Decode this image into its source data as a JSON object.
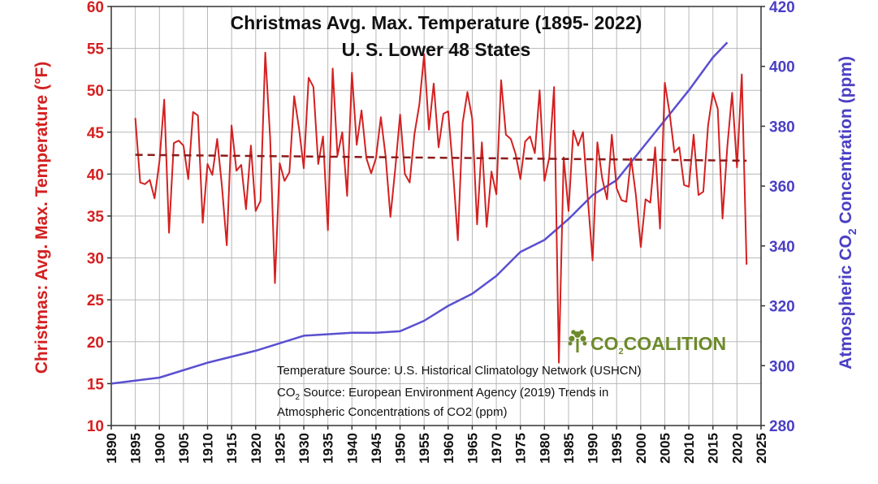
{
  "chart_data": {
    "type": "line",
    "title": "Christmas Avg. Max. Temperature (1895- 2022)",
    "subtitle": "U. S. Lower 48 States",
    "ylabel_left": "Christmas: Avg. Max. Temperature (°F)",
    "ylabel_right": "Atmospheric CO2 Concentration (ppm)",
    "ylim_left": [
      10,
      60
    ],
    "ylim_right": [
      280,
      420
    ],
    "xlim": [
      1890,
      2025
    ],
    "x_ticks": [
      "1890",
      "1895",
      "1900",
      "1905",
      "1910",
      "1915",
      "1920",
      "1925",
      "1930",
      "1935",
      "1940",
      "1945",
      "1950",
      "1955",
      "1960",
      "1965",
      "1970",
      "1975",
      "1980",
      "1985",
      "1990",
      "1995",
      "2000",
      "2005",
      "2010",
      "2015",
      "2020",
      "2025"
    ],
    "y_ticks_left": [
      "10",
      "15",
      "20",
      "25",
      "30",
      "35",
      "40",
      "45",
      "50",
      "55",
      "60"
    ],
    "y_ticks_right": [
      "280",
      "300",
      "320",
      "340",
      "360",
      "380",
      "400",
      "420"
    ],
    "grid": true,
    "colors": {
      "temperature": "#d42020",
      "trend": "#8b1a1a",
      "co2": "#5a4fd0",
      "grid": "#b8b8b8"
    },
    "series": [
      {
        "key": "temperature",
        "x": [
          1895,
          1896,
          1897,
          1898,
          1899,
          1900,
          1901,
          1902,
          1903,
          1904,
          1905,
          1906,
          1907,
          1908,
          1909,
          1910,
          1911,
          1912,
          1913,
          1914,
          1915,
          1916,
          1917,
          1918,
          1919,
          1920,
          1921,
          1922,
          1923,
          1924,
          1925,
          1926,
          1927,
          1928,
          1929,
          1930,
          1931,
          1932,
          1933,
          1934,
          1935,
          1936,
          1937,
          1938,
          1939,
          1940,
          1941,
          1942,
          1943,
          1944,
          1945,
          1946,
          1947,
          1948,
          1949,
          1950,
          1951,
          1952,
          1953,
          1954,
          1955,
          1956,
          1957,
          1958,
          1959,
          1960,
          1961,
          1962,
          1963,
          1964,
          1965,
          1966,
          1967,
          1968,
          1969,
          1970,
          1971,
          1972,
          1973,
          1974,
          1975,
          1976,
          1977,
          1978,
          1979,
          1980,
          1981,
          1982,
          1983,
          1984,
          1985,
          1986,
          1987,
          1988,
          1989,
          1990,
          1991,
          1992,
          1993,
          1994,
          1995,
          1996,
          1997,
          1998,
          1999,
          2000,
          2001,
          2002,
          2003,
          2004,
          2005,
          2006,
          2007,
          2008,
          2009,
          2010,
          2011,
          2012,
          2013,
          2014,
          2015,
          2016,
          2017,
          2018,
          2019,
          2020,
          2021,
          2022
        ],
        "values": [
          46.7,
          39,
          38.8,
          39.3,
          37.1,
          41.5,
          48.9,
          33,
          43.7,
          44,
          43.4,
          39.4,
          47.4,
          47,
          34.2,
          41.2,
          39.9,
          44.2,
          38.5,
          31.5,
          45.8,
          40.4,
          41.1,
          35.8,
          43.4,
          35.6,
          36.8,
          54.5,
          44.3,
          27,
          41.3,
          39.2,
          40.2,
          49.3,
          45.5,
          40.7,
          51.5,
          50.4,
          41.2,
          44.5,
          33.3,
          52.6,
          42.2,
          45,
          37.4,
          52.1,
          43.5,
          47.6,
          41.9,
          40.1,
          41.9,
          46.8,
          42.1,
          34.9,
          40.6,
          47.1,
          40,
          39,
          44.8,
          48.3,
          54.3,
          45.3,
          50.8,
          43.2,
          47.2,
          47.5,
          40.5,
          32.1,
          46.1,
          49.8,
          46.6,
          34,
          43.8,
          33.7,
          40.3,
          37.6,
          51.2,
          44.7,
          44.2,
          42.4,
          39.4,
          43.9,
          44.5,
          42.5,
          50,
          39.2,
          42,
          50.4,
          17.5,
          42,
          35.6,
          45.2,
          43.4,
          45,
          37.1,
          29.7,
          43.8,
          39.5,
          37,
          44.7,
          38.3,
          36.9,
          36.7,
          41.9,
          37.5,
          31.3,
          37,
          36.6,
          43.2,
          33.5,
          50.9,
          47.3,
          42.6,
          43.2,
          38.7,
          38.5,
          44.7,
          37.5,
          37.9,
          45.8,
          49.7,
          47.8,
          34.7,
          43.3,
          49.7,
          40.8,
          51.9,
          29.2
        ]
      },
      {
        "key": "trend",
        "x": [
          1895,
          2022
        ],
        "values": [
          42.3,
          41.6
        ]
      },
      {
        "key": "co2",
        "x": [
          1890,
          1900,
          1910,
          1920,
          1930,
          1940,
          1945,
          1950,
          1955,
          1960,
          1965,
          1970,
          1975,
          1980,
          1985,
          1990,
          1995,
          2000,
          2005,
          2010,
          2015,
          2018
        ],
        "values": [
          294,
          296,
          301,
          305,
          310,
          311,
          311,
          311.5,
          315,
          320,
          324,
          330,
          338,
          342,
          349,
          357,
          362,
          372,
          382,
          392,
          403,
          408
        ]
      }
    ]
  },
  "sources": {
    "temperature": "Temperature Source:  U.S. Historical Climatology Network (USHCN)",
    "co2_line1": "CO2 Source: European Environment Agency (2019)  Trends in",
    "co2_line2": "Atmospheric Concentrations of CO2 (ppm)"
  },
  "logo": {
    "text": "CO2COALITION",
    "icon": "tree-icon"
  }
}
